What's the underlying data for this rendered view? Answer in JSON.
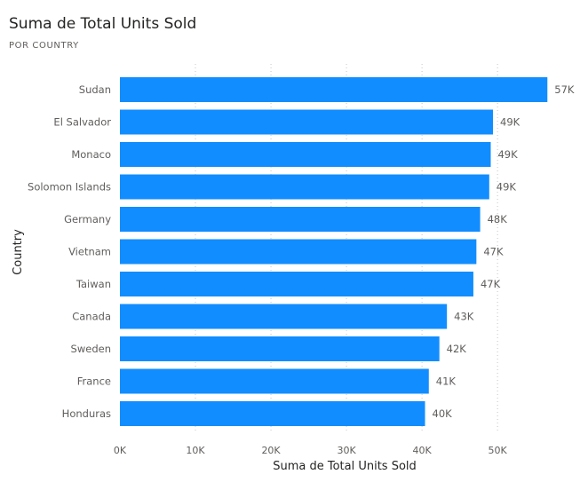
{
  "chart_title": "Suma de Total Units Sold",
  "chart_subtitle": "POR COUNTRY",
  "colors": {
    "bar": "#118DFF",
    "grid": "#c8c6c4"
  },
  "chart_data": {
    "type": "bar",
    "orientation": "horizontal",
    "title": "Suma de Total Units Sold",
    "subtitle": "POR COUNTRY",
    "xlabel": "Suma de Total Units Sold",
    "ylabel": "Country",
    "categories": [
      "Sudan",
      "El Salvador",
      "Monaco",
      "Solomon Islands",
      "Germany",
      "Vietnam",
      "Taiwan",
      "Canada",
      "Sweden",
      "France",
      "Honduras"
    ],
    "values": [
      56600,
      49400,
      49100,
      48900,
      47700,
      47200,
      46800,
      43300,
      42300,
      40900,
      40400
    ],
    "data_labels": [
      "57K",
      "49K",
      "49K",
      "49K",
      "48K",
      "47K",
      "47K",
      "43K",
      "42K",
      "41K",
      "40K"
    ],
    "xlim": [
      0,
      57000
    ],
    "x_ticks": [
      0,
      10000,
      20000,
      30000,
      40000,
      50000
    ],
    "x_tick_labels": [
      "0K",
      "10K",
      "20K",
      "30K",
      "40K",
      "50K"
    ],
    "grid": true,
    "legend": "none"
  }
}
